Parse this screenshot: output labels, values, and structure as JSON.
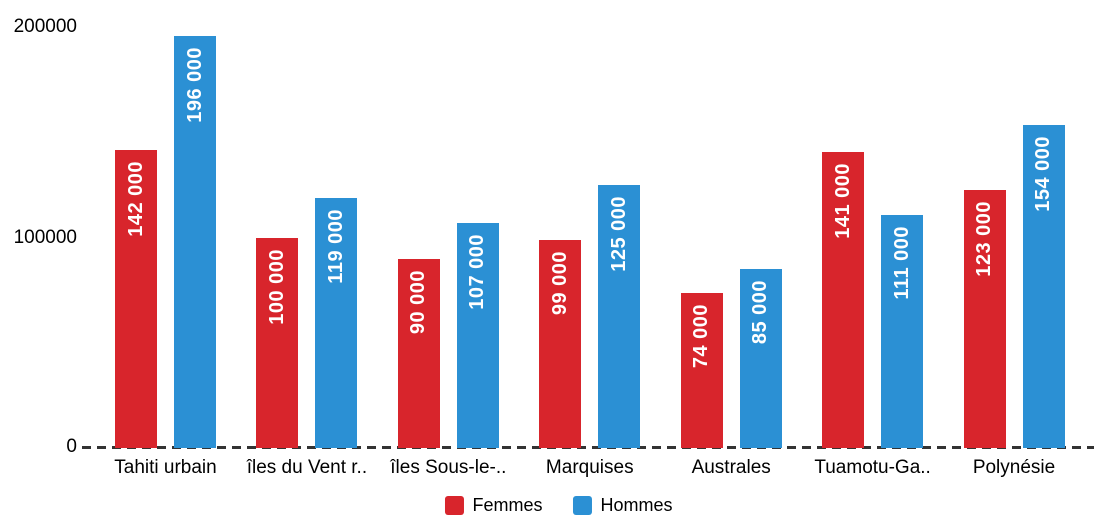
{
  "chart_data": {
    "type": "bar",
    "title": "",
    "xlabel": "",
    "ylabel": "",
    "categories": [
      "Tahiti urbain",
      "îles du Vent r..",
      "îles Sous-le-..",
      "Marquises",
      "Australes",
      "Tuamotu-Ga..",
      "Polynésie"
    ],
    "series": [
      {
        "name": "Femmes",
        "color": "#d8252c",
        "values": [
          142000,
          100000,
          90000,
          99000,
          74000,
          141000,
          123000
        ],
        "labels": [
          "142 000",
          "100 000",
          "90 000",
          "99 000",
          "74 000",
          "141 000",
          "123 000"
        ]
      },
      {
        "name": "Hommes",
        "color": "#2b90d4",
        "values": [
          196000,
          119000,
          107000,
          125000,
          85000,
          111000,
          154000
        ],
        "labels": [
          "196 000",
          "119 000",
          "107 000",
          "125 000",
          "85 000",
          "111 000",
          "154 000"
        ]
      }
    ],
    "yticks": [
      "200000",
      "100000",
      "0"
    ],
    "ylim": [
      0,
      200000
    ],
    "grid": false,
    "zero_line_style": "dashed",
    "value_label_color": "#ffffff",
    "legend_position": "bottom"
  }
}
